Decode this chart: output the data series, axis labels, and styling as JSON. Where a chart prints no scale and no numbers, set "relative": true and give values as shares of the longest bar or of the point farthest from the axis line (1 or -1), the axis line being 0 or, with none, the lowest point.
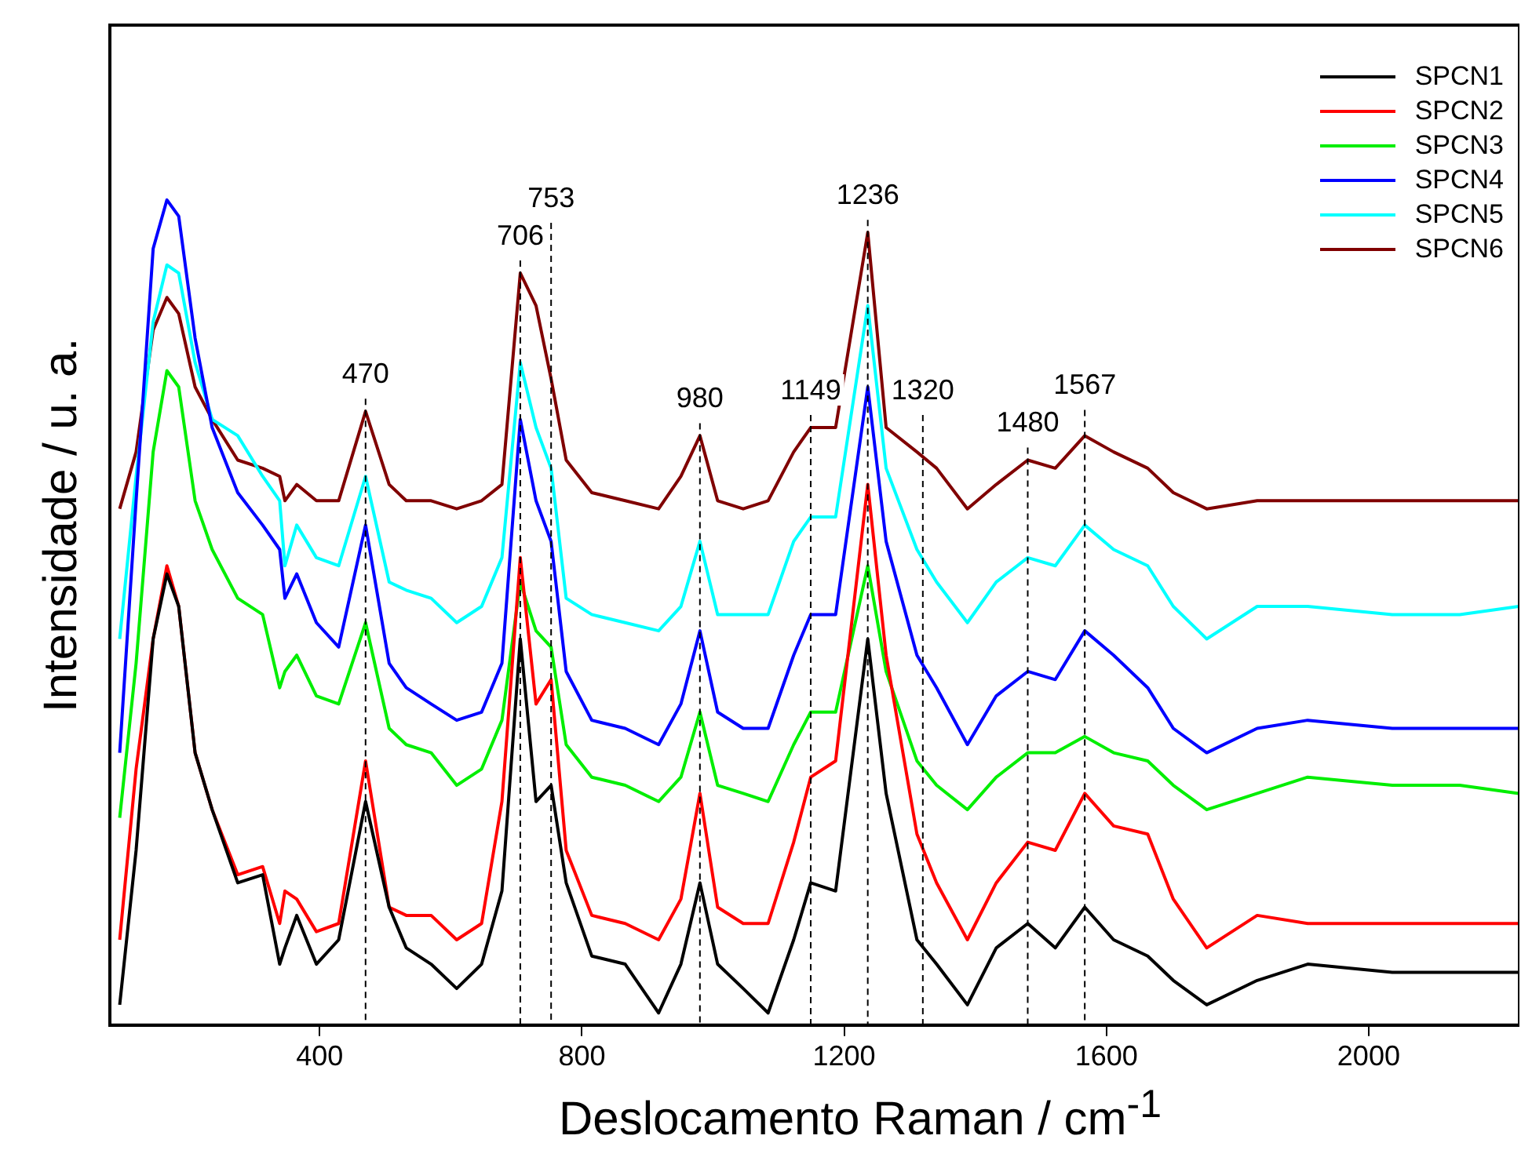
{
  "chart_data": {
    "type": "line",
    "xlabel": "Deslocamento Raman / cm$^{-1}$",
    "ylabel": "Intensidade / u. a.",
    "relative": true,
    "xlim": [
      80,
      2230
    ],
    "xticks": [
      400,
      800,
      1200,
      1600,
      2000
    ],
    "grid": false,
    "legend": "top right",
    "marker": "none",
    "line_style": "solid",
    "x": [
      95,
      120,
      146,
      167,
      185,
      210,
      236,
      275,
      313,
      339,
      347,
      365,
      395,
      429,
      470,
      506,
      532,
      570,
      609,
      647,
      678,
      706,
      730,
      753,
      776,
      815,
      866,
      917,
      951,
      980,
      1007,
      1046,
      1084,
      1123,
      1149,
      1187,
      1236,
      1264,
      1311,
      1341,
      1388,
      1432,
      1480,
      1522,
      1567,
      1611,
      1663,
      1702,
      1753,
      1830,
      1907,
      2036,
      2139,
      2229
    ],
    "series": [
      {
        "name": "SPCN1",
        "color": "#000000",
        "values": [
          0.01,
          0.2,
          0.46,
          0.54,
          0.5,
          0.32,
          0.25,
          0.16,
          0.17,
          0.06,
          0.08,
          0.12,
          0.06,
          0.09,
          0.26,
          0.13,
          0.08,
          0.06,
          0.03,
          0.06,
          0.15,
          0.46,
          0.26,
          0.28,
          0.16,
          0.07,
          0.06,
          0,
          0.06,
          0.16,
          0.06,
          0.03,
          0,
          0.09,
          0.16,
          0.15,
          0.46,
          0.27,
          0.09,
          0.06,
          0.01,
          0.08,
          0.11,
          0.08,
          0.13,
          0.09,
          0.07,
          0.04,
          0.01,
          0.04,
          0.06,
          0.05,
          0.05,
          0.05
        ]
      },
      {
        "name": "SPCN2",
        "color": "#ff0000",
        "values": [
          0.09,
          0.3,
          0.46,
          0.55,
          0.5,
          0.32,
          0.25,
          0.17,
          0.18,
          0.11,
          0.15,
          0.14,
          0.1,
          0.11,
          0.31,
          0.13,
          0.12,
          0.12,
          0.09,
          0.11,
          0.26,
          0.56,
          0.38,
          0.41,
          0.2,
          0.12,
          0.11,
          0.09,
          0.14,
          0.27,
          0.13,
          0.11,
          0.11,
          0.21,
          0.29,
          0.31,
          0.65,
          0.44,
          0.22,
          0.16,
          0.09,
          0.16,
          0.21,
          0.2,
          0.27,
          0.23,
          0.22,
          0.14,
          0.08,
          0.12,
          0.11,
          0.11,
          0.11,
          0.11
        ]
      },
      {
        "name": "SPCN3",
        "color": "#00ee00",
        "values": [
          0.24,
          0.43,
          0.69,
          0.79,
          0.77,
          0.63,
          0.57,
          0.51,
          0.49,
          0.4,
          0.42,
          0.44,
          0.39,
          0.38,
          0.48,
          0.35,
          0.33,
          0.32,
          0.28,
          0.3,
          0.36,
          0.53,
          0.47,
          0.45,
          0.33,
          0.29,
          0.28,
          0.26,
          0.29,
          0.37,
          0.28,
          0.27,
          0.26,
          0.33,
          0.37,
          0.37,
          0.55,
          0.42,
          0.31,
          0.28,
          0.25,
          0.29,
          0.32,
          0.32,
          0.34,
          0.32,
          0.31,
          0.28,
          0.25,
          0.27,
          0.29,
          0.28,
          0.28,
          0.27
        ]
      },
      {
        "name": "SPCN4",
        "color": "#0000ff",
        "values": [
          0.32,
          0.63,
          0.94,
          1,
          0.98,
          0.83,
          0.72,
          0.64,
          0.6,
          0.57,
          0.51,
          0.54,
          0.48,
          0.45,
          0.6,
          0.43,
          0.4,
          0.38,
          0.36,
          0.37,
          0.43,
          0.73,
          0.63,
          0.58,
          0.42,
          0.36,
          0.35,
          0.33,
          0.38,
          0.47,
          0.37,
          0.35,
          0.35,
          0.44,
          0.49,
          0.49,
          0.77,
          0.58,
          0.44,
          0.4,
          0.33,
          0.39,
          0.42,
          0.41,
          0.47,
          0.44,
          0.4,
          0.35,
          0.32,
          0.35,
          0.36,
          0.35,
          0.35,
          0.35
        ]
      },
      {
        "name": "SPCN5",
        "color": "#00ffff",
        "values": [
          0.46,
          0.66,
          0.85,
          0.92,
          0.91,
          0.8,
          0.73,
          0.71,
          0.66,
          0.63,
          0.55,
          0.6,
          0.56,
          0.55,
          0.66,
          0.53,
          0.52,
          0.51,
          0.48,
          0.5,
          0.56,
          0.8,
          0.72,
          0.67,
          0.51,
          0.49,
          0.48,
          0.47,
          0.5,
          0.58,
          0.49,
          0.49,
          0.49,
          0.58,
          0.61,
          0.61,
          0.87,
          0.67,
          0.57,
          0.53,
          0.48,
          0.53,
          0.56,
          0.55,
          0.6,
          0.57,
          0.55,
          0.5,
          0.46,
          0.5,
          0.5,
          0.49,
          0.49,
          0.5
        ]
      },
      {
        "name": "SPCN6",
        "color": "#800000",
        "values": [
          0.62,
          0.69,
          0.84,
          0.88,
          0.86,
          0.77,
          0.73,
          0.68,
          0.67,
          0.66,
          0.63,
          0.65,
          0.63,
          0.63,
          0.74,
          0.65,
          0.63,
          0.63,
          0.62,
          0.63,
          0.65,
          0.91,
          0.87,
          0.78,
          0.68,
          0.64,
          0.63,
          0.62,
          0.66,
          0.71,
          0.63,
          0.62,
          0.63,
          0.69,
          0.72,
          0.72,
          0.96,
          0.72,
          0.69,
          0.67,
          0.62,
          0.65,
          0.68,
          0.67,
          0.71,
          0.69,
          0.67,
          0.64,
          0.62,
          0.63,
          0.63,
          0.63,
          0.63,
          0.63
        ]
      }
    ],
    "ref_lines": [
      {
        "axis": "x",
        "value": 470,
        "label": "470",
        "color": "#000000",
        "line_style": "dashed"
      },
      {
        "axis": "x",
        "value": 706,
        "label": "706",
        "color": "#000000",
        "line_style": "dashed"
      },
      {
        "axis": "x",
        "value": 753,
        "label": "753",
        "color": "#000000",
        "line_style": "dashed"
      },
      {
        "axis": "x",
        "value": 980,
        "label": "980",
        "color": "#000000",
        "line_style": "dashed"
      },
      {
        "axis": "x",
        "value": 1149,
        "label": "1149",
        "color": "#000000",
        "line_style": "dashed"
      },
      {
        "axis": "x",
        "value": 1236,
        "label": "1236",
        "color": "#000000",
        "line_style": "dashed"
      },
      {
        "axis": "x",
        "value": 1320,
        "label": "1320",
        "color": "#000000",
        "line_style": "dashed"
      },
      {
        "axis": "x",
        "value": 1480,
        "label": "1480",
        "color": "#000000",
        "line_style": "dashed"
      },
      {
        "axis": "x",
        "value": 1567,
        "label": "1567",
        "color": "#000000",
        "line_style": "dashed"
      }
    ]
  }
}
